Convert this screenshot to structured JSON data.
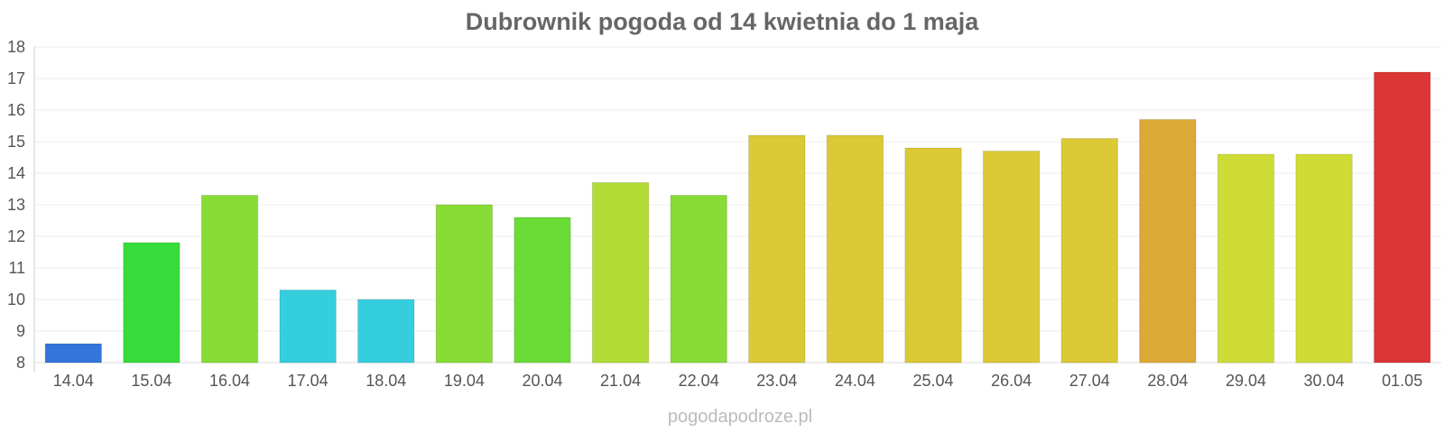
{
  "chart_data": {
    "type": "bar",
    "title": "Dubrownik pogoda od 14 kwietnia do 1 maja",
    "xlabel": "",
    "ylabel": "",
    "categories": [
      "14.04",
      "15.04",
      "16.04",
      "17.04",
      "18.04",
      "19.04",
      "20.04",
      "21.04",
      "22.04",
      "23.04",
      "24.04",
      "25.04",
      "26.04",
      "27.04",
      "28.04",
      "29.04",
      "30.04",
      "01.05"
    ],
    "values": [
      8.6,
      11.8,
      13.3,
      10.3,
      10.0,
      13.0,
      12.6,
      13.7,
      13.3,
      15.2,
      15.2,
      14.8,
      14.7,
      15.1,
      15.7,
      14.6,
      14.6,
      17.2
    ],
    "colors": [
      "#3375db",
      "#35dc3a",
      "#87dc35",
      "#35cede",
      "#35cede",
      "#87dc35",
      "#6bdb35",
      "#b0dc35",
      "#87dc35",
      "#dbc935",
      "#dbc935",
      "#dbc935",
      "#dbc935",
      "#dbc935",
      "#dba935",
      "#cfdc35",
      "#cfdc35",
      "#db3535"
    ],
    "ylim": [
      8,
      18
    ],
    "yticks": [
      8,
      9,
      10,
      11,
      12,
      13,
      14,
      15,
      16,
      17,
      18
    ],
    "grid": true,
    "legend": "none"
  },
  "watermark": "pogodapodroze.pl"
}
